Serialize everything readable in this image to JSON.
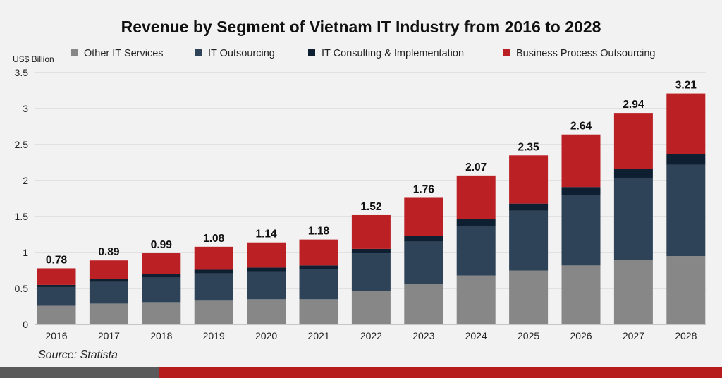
{
  "chart_data": {
    "type": "stacked-bar",
    "title": "Revenue by Segment of Vietnam IT Industry from 2016 to 2028",
    "ylabel": "US$ Billion",
    "xlabel": "",
    "ylim": [
      0,
      3.5
    ],
    "yticks": [
      "0",
      "0.5",
      "1",
      "1.5",
      "2",
      "2.5",
      "3",
      "3.5"
    ],
    "grid": true,
    "legend_position": "top",
    "categories": [
      "2016",
      "2017",
      "2018",
      "2019",
      "2020",
      "2021",
      "2022",
      "2023",
      "2024",
      "2025",
      "2026",
      "2027",
      "2028"
    ],
    "series": [
      {
        "name": "Other IT Services",
        "color": "#878787",
        "values": [
          0.26,
          0.29,
          0.31,
          0.33,
          0.35,
          0.35,
          0.46,
          0.56,
          0.68,
          0.75,
          0.82,
          0.9,
          0.95
        ]
      },
      {
        "name": "IT Outsourcing",
        "color": "#2f4358",
        "values": [
          0.26,
          0.3,
          0.34,
          0.38,
          0.39,
          0.42,
          0.53,
          0.59,
          0.69,
          0.83,
          0.98,
          1.13,
          1.27
        ]
      },
      {
        "name": "IT Consulting & Implementation",
        "color": "#0d1f30",
        "values": [
          0.03,
          0.04,
          0.05,
          0.05,
          0.05,
          0.05,
          0.06,
          0.08,
          0.1,
          0.1,
          0.11,
          0.13,
          0.15
        ]
      },
      {
        "name": "Business Process Outsourcing",
        "color": "#bb2024",
        "values": [
          0.23,
          0.26,
          0.29,
          0.32,
          0.35,
          0.36,
          0.47,
          0.53,
          0.6,
          0.67,
          0.73,
          0.78,
          0.84
        ]
      }
    ],
    "totals": [
      "0.78",
      "0.89",
      "0.99",
      "1.08",
      "1.14",
      "1.18",
      "1.52",
      "1.76",
      "2.07",
      "2.35",
      "2.64",
      "2.94",
      "3.21"
    ],
    "source": "Source: Statista"
  }
}
